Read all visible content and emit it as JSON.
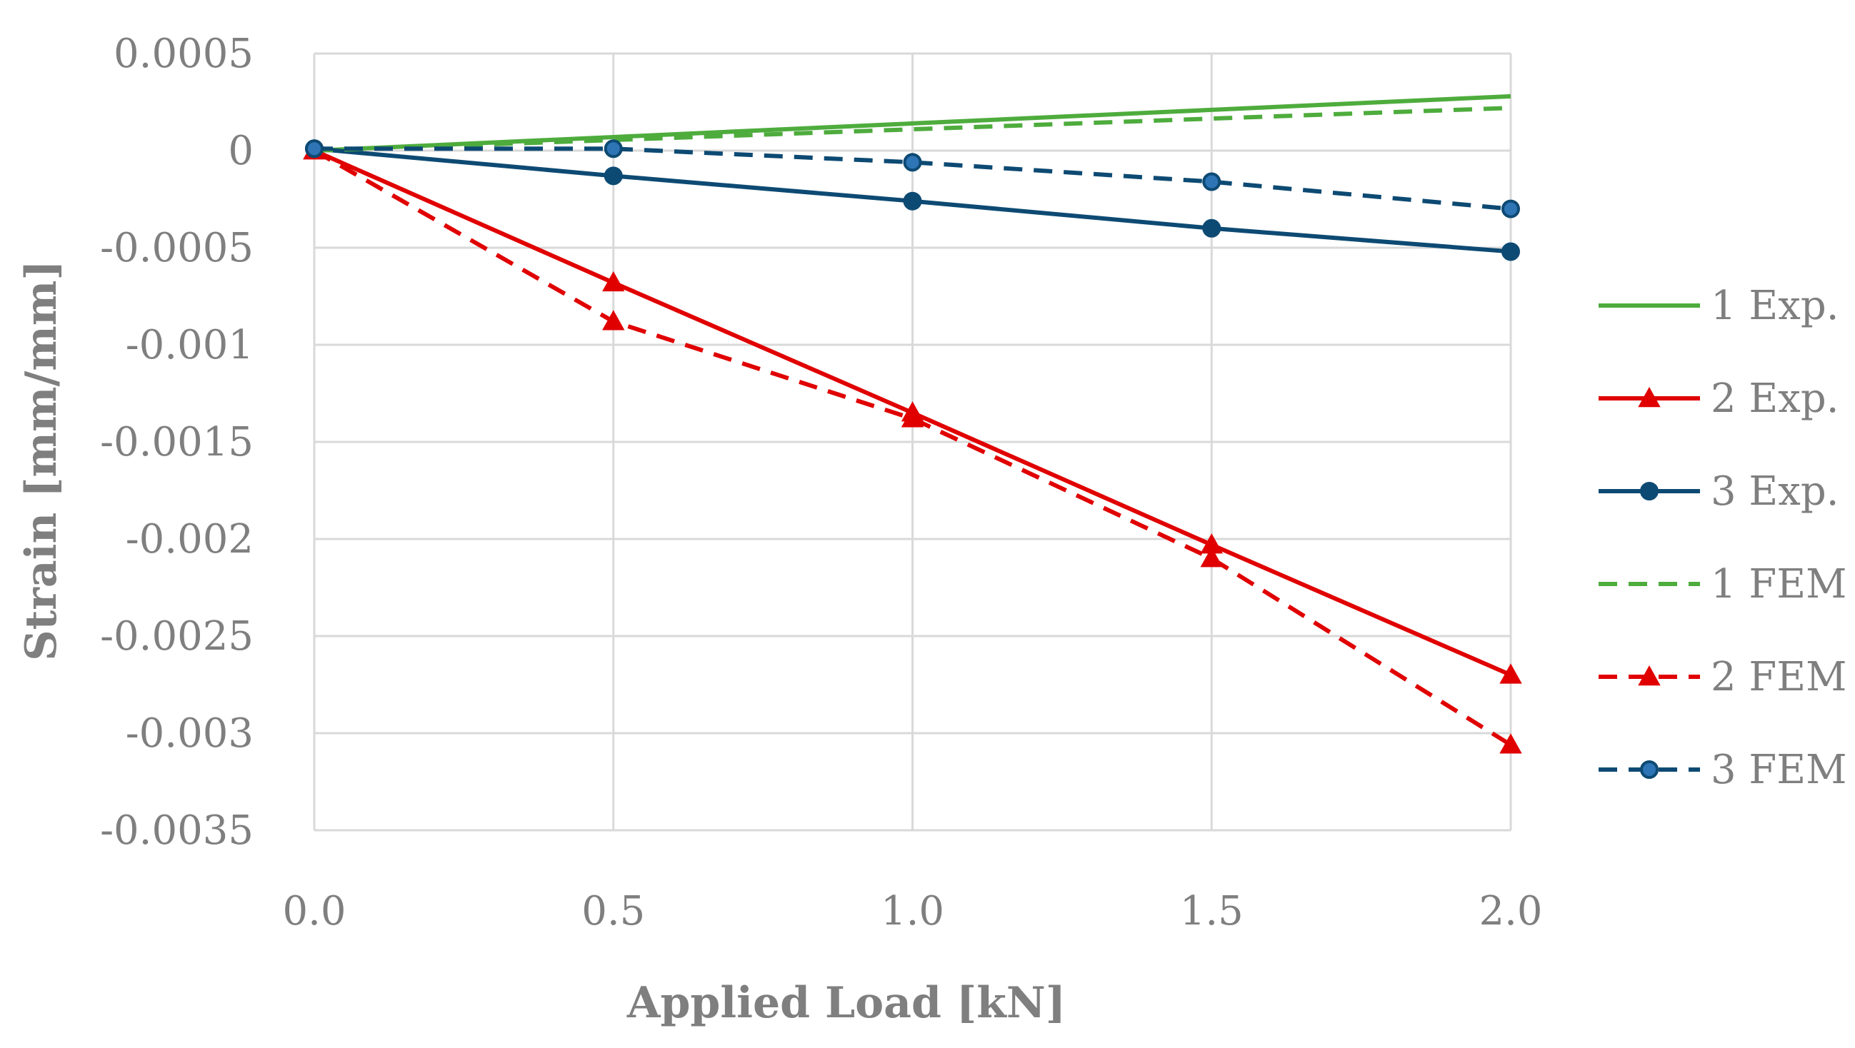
{
  "chart_data": {
    "type": "line",
    "title": "",
    "xlabel": "Applied Load [kN]",
    "ylabel": "Strain [mm/mm]",
    "x": [
      0,
      0.5,
      1.0,
      1.5,
      2.0
    ],
    "x_tick_labels": [
      "0.0",
      "0.5",
      "1.0",
      "1.5",
      "2.0"
    ],
    "y_ticks": [
      0.0005,
      0,
      -0.0005,
      -0.001,
      -0.0015,
      -0.002,
      -0.0025,
      -0.003,
      -0.0035
    ],
    "y_tick_labels": [
      "0.0005",
      "0",
      "-0.0005",
      "-0.001",
      "-0.0015",
      "-0.002",
      "-0.0025",
      "-0.003",
      "-0.0035"
    ],
    "xlim": [
      0,
      2.0
    ],
    "ylim": [
      -0.0035,
      0.0005
    ],
    "grid": true,
    "legend_position": "right",
    "series": [
      {
        "name": "1 Exp.",
        "values": [
          0,
          7e-05,
          0.00014,
          0.00021,
          0.00028
        ],
        "color": "#4eac3d",
        "dash": "solid",
        "marker": "none"
      },
      {
        "name": "2 Exp.",
        "values": [
          0,
          -0.00068,
          -0.00135,
          -0.00203,
          -0.0027
        ],
        "color": "#e00000",
        "dash": "solid",
        "marker": "triangle"
      },
      {
        "name": "3 Exp.",
        "values": [
          1e-05,
          -0.00013,
          -0.00026,
          -0.0004,
          -0.00052
        ],
        "color": "#0d4a73",
        "dash": "solid",
        "marker": "circle"
      },
      {
        "name": "1 FEM",
        "values": [
          0,
          5.5e-05,
          0.00011,
          0.000165,
          0.00022
        ],
        "color": "#4eac3d",
        "dash": "dashed",
        "marker": "none"
      },
      {
        "name": "2 FEM",
        "values": [
          0,
          -0.00088,
          -0.00138,
          -0.0021,
          -0.00306
        ],
        "color": "#e00000",
        "dash": "dashed",
        "marker": "triangle"
      },
      {
        "name": "3 FEM",
        "values": [
          1e-05,
          1e-05,
          -6e-05,
          -0.00016,
          -0.0003
        ],
        "color": "#0d4a73",
        "dash": "dashed",
        "marker": "circle",
        "marker_fill": "#2e75b6"
      }
    ]
  }
}
